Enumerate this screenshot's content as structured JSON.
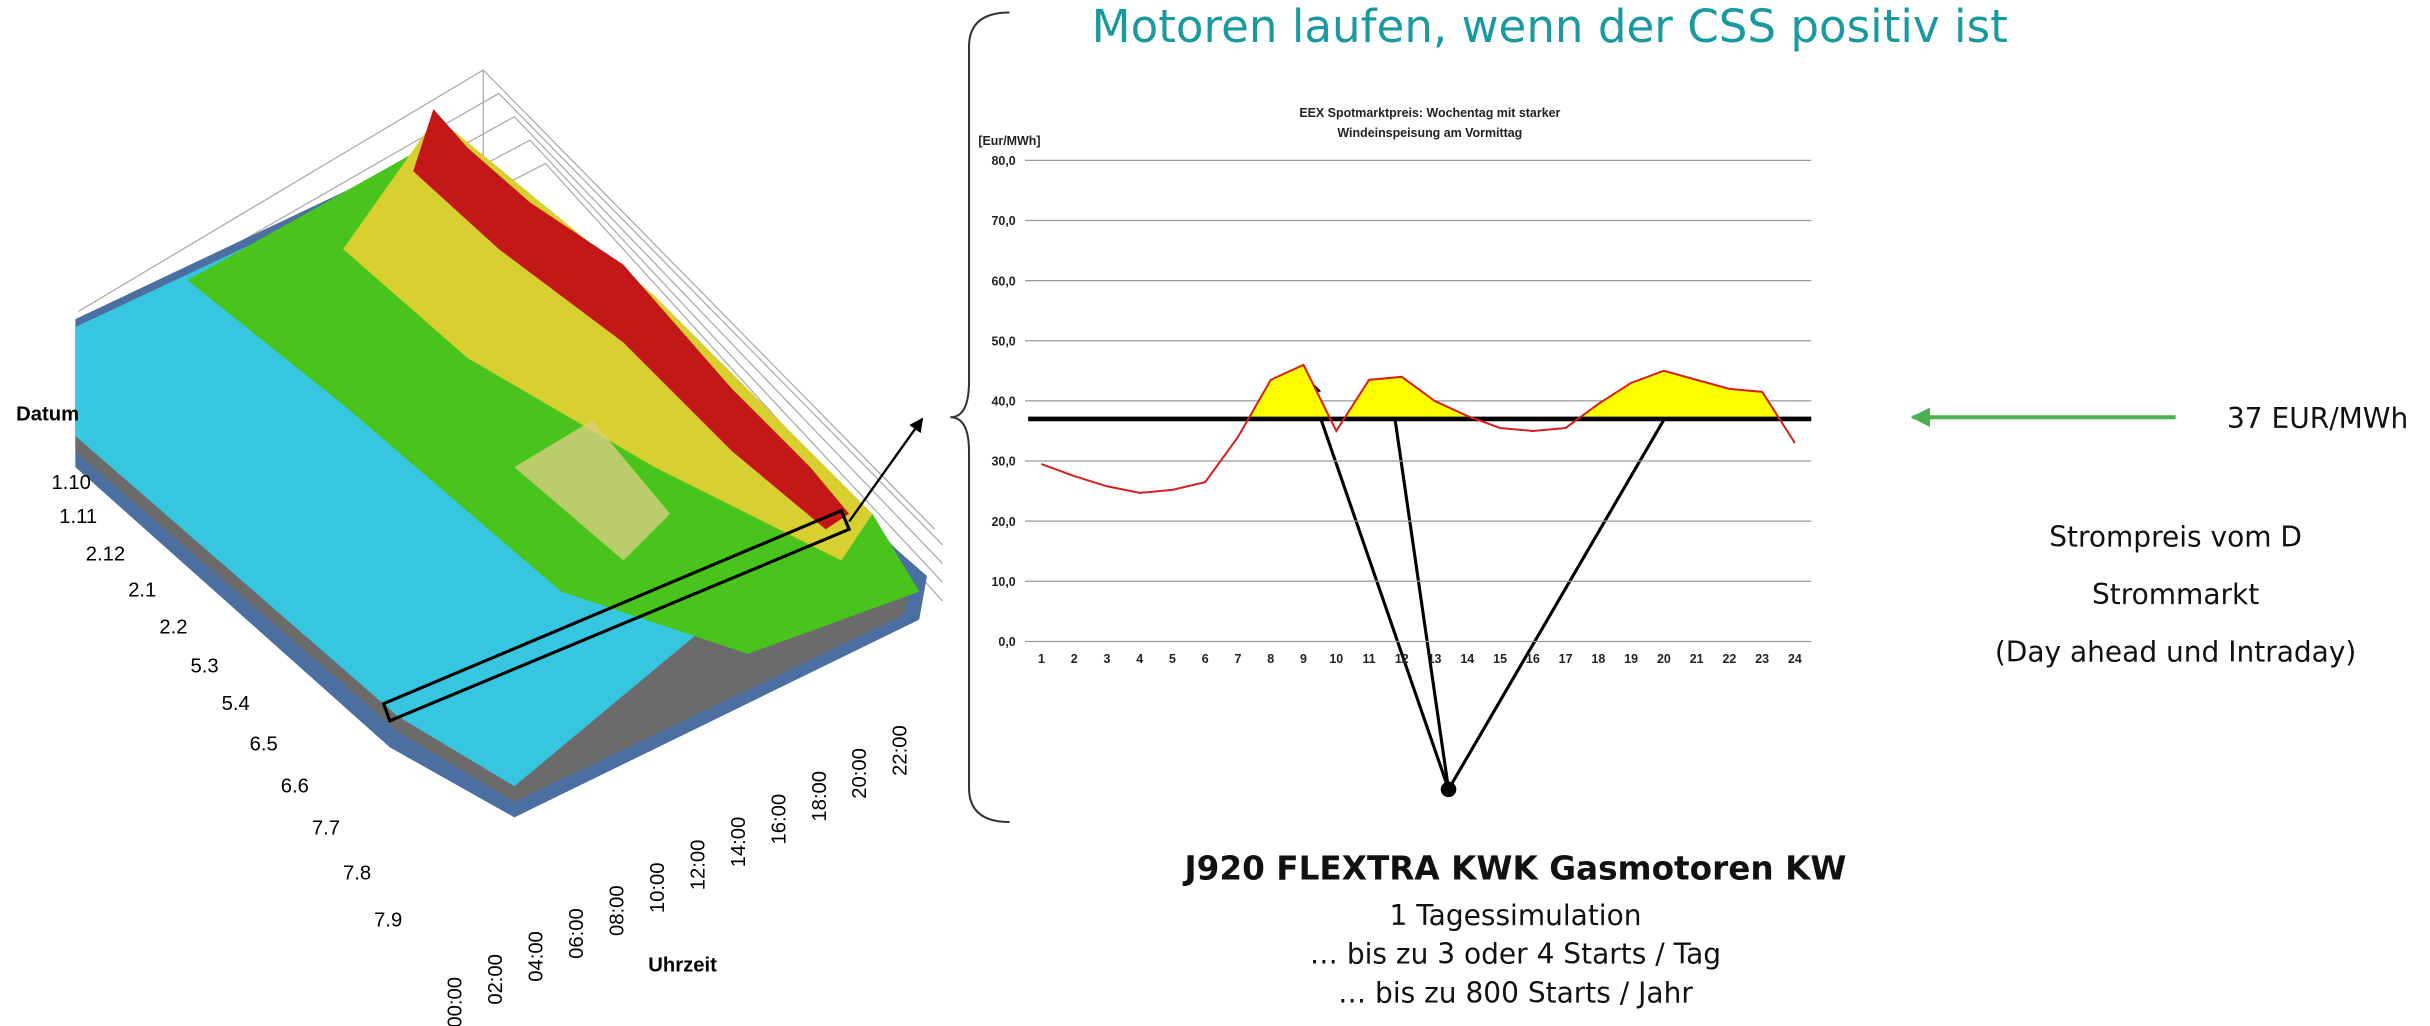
{
  "slide_title": "Motoren laufen, wenn der CSS positiv ist",
  "surface": {
    "y_label": "Datum",
    "dates": [
      "1.10",
      "1.11",
      "2.12",
      "2.1",
      "2.2",
      "5.3",
      "5.4",
      "6.5",
      "6.6",
      "7.7",
      "7.8",
      "7.9"
    ],
    "x_label": "Uhrzeit",
    "times": [
      "00:00",
      "02:00",
      "04:00",
      "06:00",
      "08:00",
      "10:00",
      "12:00",
      "14:00",
      "16:00",
      "18:00",
      "20:00",
      "22:00"
    ]
  },
  "chart_data": {
    "type": "line",
    "title": [
      "EEX Spotmarktpreis: Wochentag mit starker",
      "Windeinspeisung am Vormittag"
    ],
    "y_label": "[Eur/MWh]",
    "categories": [
      "1",
      "2",
      "3",
      "4",
      "5",
      "6",
      "7",
      "8",
      "9",
      "10",
      "11",
      "12",
      "13",
      "14",
      "15",
      "16",
      "17",
      "18",
      "19",
      "20",
      "21",
      "22",
      "23",
      "24"
    ],
    "values": [
      29.5,
      27.5,
      25.8,
      24.7,
      25.2,
      26.5,
      34,
      43.5,
      46,
      35,
      43.5,
      44,
      40,
      37.5,
      35.5,
      35,
      35.5,
      39.5,
      43,
      45,
      43.5,
      42,
      41.5,
      33
    ],
    "color": "#d42020",
    "fill_color": "#ffff00",
    "ylim": [
      0,
      80
    ],
    "yticks": [
      {
        "value": 0,
        "label": "0,0"
      },
      {
        "value": 10,
        "label": "10,0"
      },
      {
        "value": 20,
        "label": "20,0"
      },
      {
        "value": 30,
        "label": "30,0"
      },
      {
        "value": 40,
        "label": "40,0"
      },
      {
        "value": 50,
        "label": "50,0"
      },
      {
        "value": 60,
        "label": "60,0"
      },
      {
        "value": 70,
        "label": "70,0"
      },
      {
        "value": 80,
        "label": "80,0"
      }
    ],
    "grid": true,
    "reference_line": {
      "value": 37,
      "label": "37 EUR/MWh",
      "color": "#000000"
    }
  },
  "market_note": [
    "Strompreis vom D",
    "Strommarkt",
    "(Day ahead und Intraday)"
  ],
  "engine": {
    "title": "J920 FLEXTRA KWK Gasmotoren KW",
    "lines": [
      "1 Tagessimulation",
      "… bis zu 3 oder 4 Starts / Tag",
      "… bis zu 800 Starts / Jahr"
    ]
  }
}
